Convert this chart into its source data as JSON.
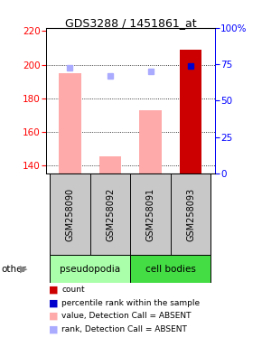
{
  "title": "GDS3288 / 1451861_at",
  "samples": [
    "GSM258090",
    "GSM258092",
    "GSM258091",
    "GSM258093"
  ],
  "bar_values": [
    195,
    145,
    173,
    209
  ],
  "bar_colors": [
    "#ffaaaa",
    "#ffaaaa",
    "#ffaaaa",
    "#cc0000"
  ],
  "rank_markers": [
    198,
    193,
    196,
    199
  ],
  "rank_colors": [
    "#aaaaff",
    "#aaaaff",
    "#aaaaff",
    "#0000cc"
  ],
  "ylim_left": [
    135,
    222
  ],
  "ylim_right": [
    0,
    100
  ],
  "yticks_left": [
    140,
    160,
    180,
    200,
    220
  ],
  "yticks_right": [
    0,
    25,
    50,
    75,
    100
  ],
  "ytick_labels_right": [
    "0",
    "25",
    "50",
    "75",
    "100%"
  ],
  "bar_bottom": 135,
  "pseudo_color": "#aaffaa",
  "cell_color": "#44dd44",
  "label_bg": "#c8c8c8",
  "legend_items": [
    {
      "label": "count",
      "color": "#cc0000"
    },
    {
      "label": "percentile rank within the sample",
      "color": "#0000cc"
    },
    {
      "label": "value, Detection Call = ABSENT",
      "color": "#ffaaaa"
    },
    {
      "label": "rank, Detection Call = ABSENT",
      "color": "#aaaaff"
    }
  ]
}
